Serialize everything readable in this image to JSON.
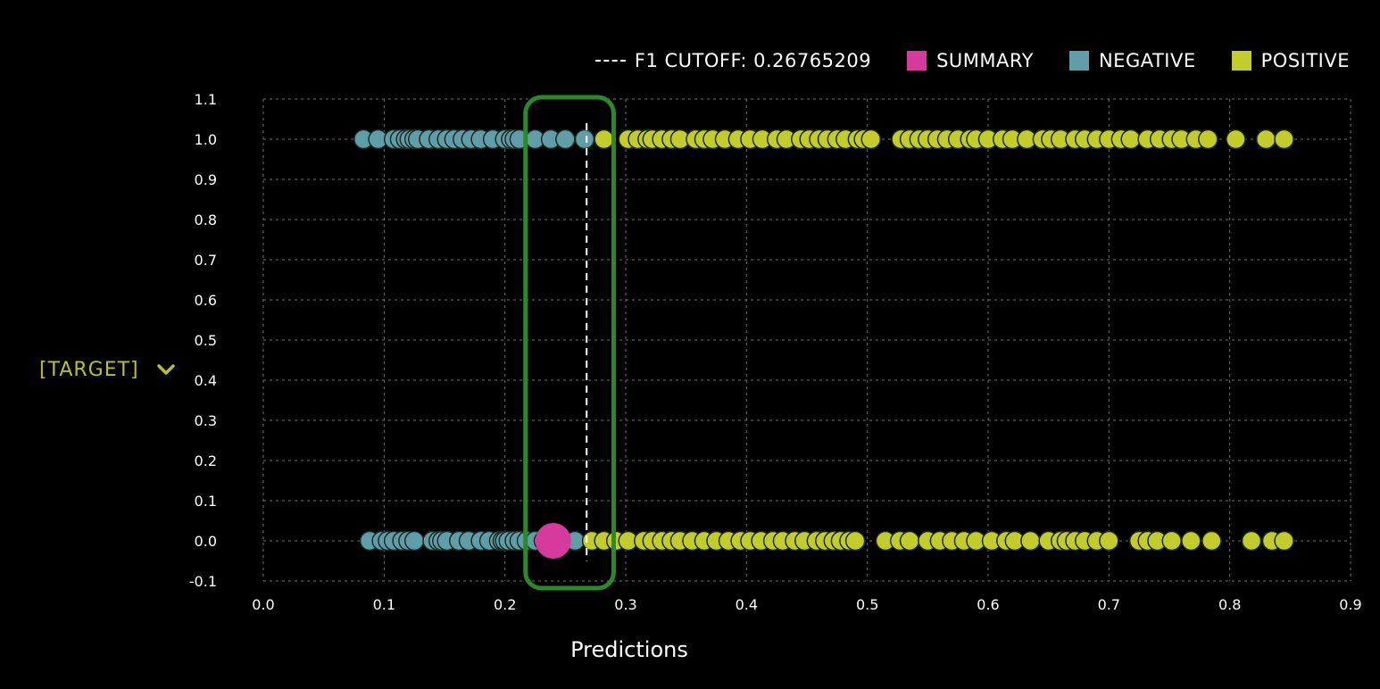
{
  "legend": {
    "cutoff_label": "F1 CUTOFF: 0.26765209",
    "summary_label": "SUMMARY",
    "negative_label": "NEGATIVE",
    "positive_label": "POSITIVE"
  },
  "target_selector": {
    "label": "[TARGET]"
  },
  "colors": {
    "summary": "#d63a9d",
    "negative": "#5f9ea8",
    "positive": "#c2cc2a",
    "grid": "#6e6e6e",
    "highlight": "#2a8a2a",
    "accent": "#b9c224"
  },
  "chart_data": {
    "type": "scatter",
    "xlabel": "Predictions",
    "ylabel": "",
    "xlim": [
      0.0,
      0.9
    ],
    "ylim": [
      -0.1,
      1.1
    ],
    "x_ticks": [
      "0.0",
      "0.1",
      "0.2",
      "0.3",
      "0.4",
      "0.5",
      "0.6",
      "0.7",
      "0.8",
      "0.9"
    ],
    "y_ticks": [
      "1.1",
      "1.0",
      "0.9",
      "0.8",
      "0.7",
      "0.6",
      "0.5",
      "0.4",
      "0.3",
      "0.2",
      "0.1",
      "0.0",
      "-0.1"
    ],
    "grid": true,
    "legend_position": "top-right",
    "cutoff": 0.26765209,
    "highlight_region": [
      0.22,
      0.29
    ],
    "series": [
      {
        "name": "NEGATIVE",
        "y": 1.0,
        "x": [
          0.083,
          0.095,
          0.108,
          0.113,
          0.118,
          0.121,
          0.125,
          0.128,
          0.137,
          0.145,
          0.152,
          0.158,
          0.165,
          0.172,
          0.18,
          0.19,
          0.2,
          0.205,
          0.208,
          0.212,
          0.225,
          0.238,
          0.25,
          0.266
        ]
      },
      {
        "name": "NEGATIVE",
        "y": 0.0,
        "x": [
          0.088,
          0.098,
          0.103,
          0.108,
          0.115,
          0.12,
          0.125,
          0.14,
          0.145,
          0.148,
          0.152,
          0.162,
          0.17,
          0.18,
          0.187,
          0.195,
          0.198,
          0.2,
          0.203,
          0.208,
          0.212,
          0.218,
          0.225,
          0.232,
          0.258
        ]
      },
      {
        "name": "POSITIVE",
        "y": 1.0,
        "x": [
          0.282,
          0.302,
          0.31,
          0.318,
          0.322,
          0.33,
          0.338,
          0.345,
          0.358,
          0.365,
          0.372,
          0.382,
          0.393,
          0.403,
          0.413,
          0.425,
          0.433,
          0.445,
          0.452,
          0.46,
          0.467,
          0.475,
          0.482,
          0.492,
          0.497,
          0.503,
          0.528,
          0.535,
          0.543,
          0.55,
          0.558,
          0.566,
          0.575,
          0.585,
          0.59,
          0.6,
          0.612,
          0.62,
          0.632,
          0.645,
          0.652,
          0.66,
          0.672,
          0.68,
          0.69,
          0.7,
          0.71,
          0.718,
          0.732,
          0.742,
          0.752,
          0.76,
          0.772,
          0.782,
          0.805,
          0.83,
          0.845
        ]
      },
      {
        "name": "POSITIVE",
        "y": 0.0,
        "x": [
          0.272,
          0.282,
          0.292,
          0.302,
          0.315,
          0.322,
          0.33,
          0.338,
          0.345,
          0.355,
          0.365,
          0.375,
          0.385,
          0.395,
          0.403,
          0.412,
          0.422,
          0.43,
          0.44,
          0.448,
          0.458,
          0.465,
          0.472,
          0.478,
          0.485,
          0.49,
          0.515,
          0.527,
          0.535,
          0.55,
          0.56,
          0.57,
          0.58,
          0.59,
          0.603,
          0.615,
          0.622,
          0.635,
          0.65,
          0.66,
          0.665,
          0.672,
          0.68,
          0.69,
          0.7,
          0.725,
          0.732,
          0.74,
          0.752,
          0.768,
          0.785,
          0.818,
          0.835,
          0.845
        ]
      },
      {
        "name": "SUMMARY",
        "y": 0.0,
        "x": [
          0.24
        ]
      }
    ]
  }
}
